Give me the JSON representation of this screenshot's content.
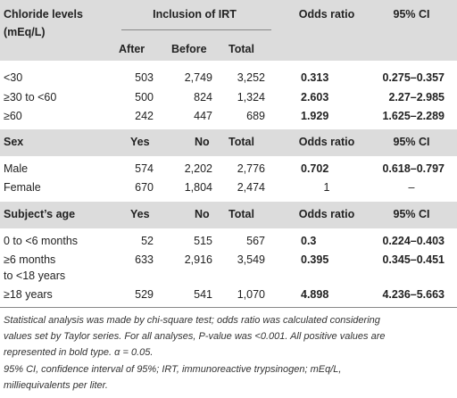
{
  "head": {
    "chloride_label_1": "Chloride levels",
    "chloride_label_2": "(mEq/L)",
    "inclusion": "Inclusion of IRT",
    "odds": "Odds ratio",
    "ci": "95% CI",
    "after": "After",
    "before": "Before",
    "total": "Total"
  },
  "chloride_rows": [
    {
      "label": "<30",
      "after": "503",
      "before": "2,749",
      "total": "3,252",
      "or": "0.313",
      "ci": "0.275–0.357"
    },
    {
      "label": "≥30 to <60",
      "after": "500",
      "before": "824",
      "total": "1,324",
      "or": "2.603",
      "ci": "2.27–2.985"
    },
    {
      "label": "≥60",
      "after": "242",
      "before": "447",
      "total": "689",
      "or": "1.929",
      "ci": "1.625–2.289"
    }
  ],
  "sex_head": {
    "label": "Sex",
    "yes": "Yes",
    "no": "No",
    "total": "Total",
    "or": "Odds ratio",
    "ci": "95% CI"
  },
  "sex_rows": [
    {
      "label": "Male",
      "yes": "574",
      "no": "2,202",
      "total": "2,776",
      "or": "0.702",
      "ci": "0.618–0.797"
    },
    {
      "label": "Female",
      "yes": "670",
      "no": "1,804",
      "total": "2,474",
      "or": "1",
      "ci": "–"
    }
  ],
  "age_head": {
    "label": "Subject’s age",
    "yes": "Yes",
    "no": "No",
    "total": "Total",
    "or": "Odds ratio",
    "ci": "95% CI"
  },
  "age_rows": [
    {
      "label": "0 to <6 months",
      "yes": "52",
      "no": "515",
      "total": "567",
      "or": "0.3",
      "ci": "0.224–0.403"
    },
    {
      "label": "≥6 months",
      "label2": "to <18 years",
      "yes": "633",
      "no": "2,916",
      "total": "3,549",
      "or": "0.395",
      "ci": "0.345–0.451"
    },
    {
      "label": "≥18 years",
      "yes": "529",
      "no": "541",
      "total": "1,070",
      "or": "4.898",
      "ci": "4.236–5.663"
    }
  ],
  "footnotes": {
    "line1": "Statistical analysis was made by chi-square test; odds ratio was calculated considering",
    "line2": "values set by Taylor series. For all analyses, P-value was <0.001. All positive values are",
    "line3": "represented in bold type. α = 0.05.",
    "line4": "95% CI, confidence interval of 95%; IRT, immunoreactive trypsinogen; mEq/L,",
    "line5": "milliequivalents per liter."
  }
}
